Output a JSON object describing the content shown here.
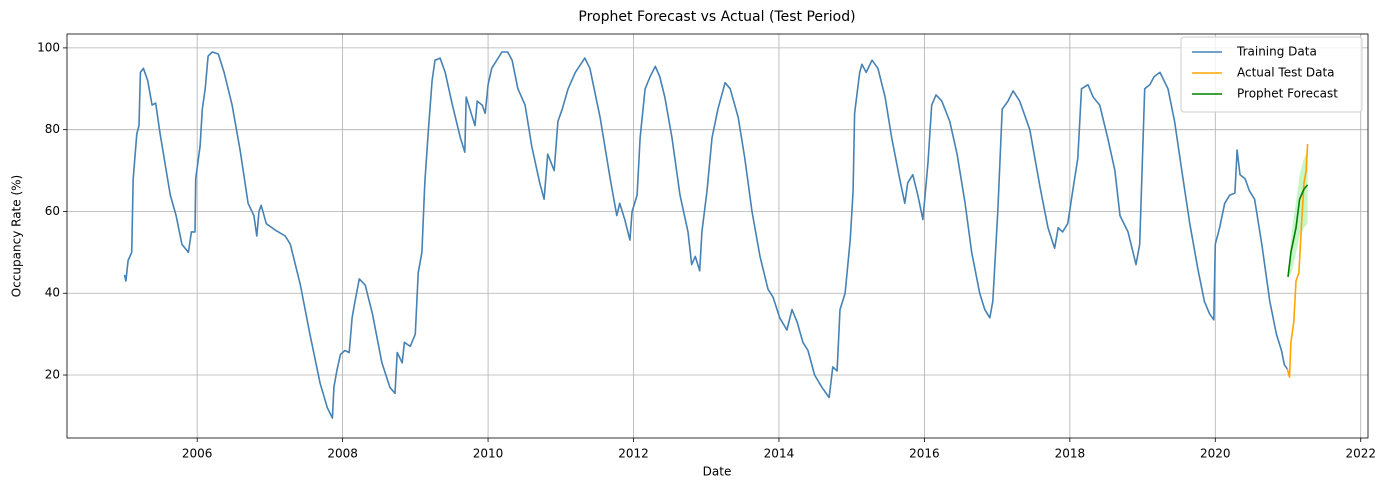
{
  "chart_data": {
    "type": "line",
    "title": "Prophet Forecast vs Actual (Test Period)",
    "x_label": "Date",
    "y_label": "Occupancy Rate (%)",
    "xlim": [
      2004.21,
      2022.1
    ],
    "ylim": [
      4.6,
      103.4
    ],
    "xticks": [
      2006,
      2008,
      2010,
      2012,
      2014,
      2016,
      2018,
      2020,
      2022
    ],
    "yticks": [
      20,
      40,
      60,
      80,
      100
    ],
    "grid": true,
    "legend": "upper right",
    "series": [
      {
        "name": "Training Data",
        "color": "#4682b4",
        "x": [
          2005.0,
          2005.02,
          2005.05,
          2005.1,
          2005.12,
          2005.17,
          2005.2,
          2005.22,
          2005.26,
          2005.32,
          2005.38,
          2005.43,
          2005.49,
          2005.63,
          2005.71,
          2005.79,
          2005.88,
          2005.92,
          2005.97,
          2005.98,
          2006.04,
          2006.07,
          2006.11,
          2006.15,
          2006.21,
          2006.29,
          2006.37,
          2006.48,
          2006.59,
          2006.7,
          2006.78,
          2006.82,
          2006.85,
          2006.88,
          2006.95,
          2007.07,
          2007.21,
          2007.28,
          2007.42,
          2007.55,
          2007.69,
          2007.79,
          2007.86,
          2007.88,
          2007.92,
          2007.97,
          2008.03,
          2008.09,
          2008.13,
          2008.17,
          2008.23,
          2008.31,
          2008.41,
          2008.54,
          2008.65,
          2008.72,
          2008.75,
          2008.82,
          2008.85,
          2008.93,
          2009.0,
          2009.04,
          2009.09,
          2009.13,
          2009.18,
          2009.23,
          2009.27,
          2009.34,
          2009.41,
          2009.51,
          2009.62,
          2009.68,
          2009.7,
          2009.75,
          2009.82,
          2009.85,
          2009.92,
          2009.96,
          2010.0,
          2010.05,
          2010.12,
          2010.19,
          2010.27,
          2010.33,
          2010.41,
          2010.51,
          2010.6,
          2010.71,
          2010.77,
          2010.82,
          2010.91,
          2010.96,
          2011.02,
          2011.1,
          2011.2,
          2011.33,
          2011.4,
          2011.54,
          2011.68,
          2011.77,
          2011.81,
          2011.88,
          2011.95,
          2011.98,
          2012.05,
          2012.09,
          2012.16,
          2012.23,
          2012.3,
          2012.36,
          2012.43,
          2012.53,
          2012.64,
          2012.75,
          2012.8,
          2012.85,
          2012.91,
          2012.94,
          2013.01,
          2013.08,
          2013.16,
          2013.26,
          2013.33,
          2013.44,
          2013.53,
          2013.63,
          2013.74,
          2013.85,
          2013.92,
          2014.01,
          2014.11,
          2014.18,
          2014.25,
          2014.33,
          2014.4,
          2014.49,
          2014.59,
          2014.69,
          2014.74,
          2014.8,
          2014.84,
          2014.91,
          2014.98,
          2015.02,
          2015.04,
          2015.11,
          2015.14,
          2015.2,
          2015.28,
          2015.36,
          2015.46,
          2015.55,
          2015.66,
          2015.73,
          2015.77,
          2015.84,
          2015.91,
          2015.98,
          2016.05,
          2016.1,
          2016.16,
          2016.24,
          2016.35,
          2016.45,
          2016.56,
          2016.65,
          2016.76,
          2016.83,
          2016.9,
          2016.94,
          2017.01,
          2017.07,
          2017.15,
          2017.22,
          2017.31,
          2017.45,
          2017.59,
          2017.7,
          2017.79,
          2017.84,
          2017.9,
          2017.97,
          2018.04,
          2018.11,
          2018.16,
          2018.25,
          2018.32,
          2018.41,
          2018.52,
          2018.62,
          2018.69,
          2018.8,
          2018.87,
          2018.91,
          2018.96,
          2019.03,
          2019.1,
          2019.16,
          2019.24,
          2019.35,
          2019.44,
          2019.54,
          2019.65,
          2019.76,
          2019.85,
          2019.92,
          2019.98,
          2020.0,
          2020.06,
          2020.13,
          2020.2,
          2020.27,
          2020.3,
          2020.34,
          2020.41,
          2020.47,
          2020.54,
          2020.64,
          2020.75,
          2020.84,
          2020.91,
          2020.95,
          2020.99
        ],
        "values": [
          44.5,
          43,
          48,
          50,
          68,
          79,
          81,
          94,
          95,
          92,
          86,
          86.5,
          79,
          64,
          59,
          52,
          50,
          55,
          55,
          68,
          76,
          85,
          90,
          98,
          99,
          98.5,
          94,
          86,
          75,
          62,
          59,
          54,
          60,
          61.5,
          57,
          55.5,
          54,
          52,
          42,
          30,
          18,
          12,
          9.5,
          17,
          21,
          25,
          26,
          25.5,
          34,
          38,
          43.5,
          42,
          35,
          23,
          17,
          15.5,
          25.5,
          23,
          28,
          27,
          30,
          45,
          50,
          67,
          80,
          92,
          97,
          97.5,
          94,
          86,
          78,
          74.5,
          88,
          85,
          81,
          87,
          86,
          84,
          91,
          95,
          97,
          99,
          99,
          97,
          90,
          86,
          76,
          67,
          63,
          74,
          70,
          82,
          85,
          90,
          94,
          97.5,
          95,
          83,
          68,
          59,
          62,
          58,
          53,
          60,
          64,
          78,
          90,
          93,
          95.5,
          93,
          88,
          78,
          64,
          55,
          47,
          49,
          45.5,
          55,
          65,
          78,
          85,
          91.5,
          90,
          83,
          73,
          60,
          49,
          41,
          39,
          34,
          31,
          36,
          33,
          28,
          26,
          20,
          17,
          14.5,
          22,
          21,
          36,
          40,
          53,
          65,
          84,
          94,
          96,
          94,
          97,
          95,
          88,
          78,
          68,
          62,
          67,
          69,
          64,
          58,
          72,
          86,
          88.5,
          87,
          82,
          74,
          62,
          50,
          40,
          36,
          34,
          38,
          60,
          85,
          87,
          89.5,
          87,
          80,
          66,
          56,
          51,
          56,
          55,
          57,
          65,
          73,
          90,
          91,
          88,
          86,
          78,
          70,
          59,
          55,
          50,
          47,
          52,
          90,
          91,
          93,
          94,
          90,
          82,
          70,
          57,
          46,
          38,
          35,
          33.5,
          52,
          56,
          62,
          64,
          64.5,
          75,
          69,
          68,
          65,
          63,
          52,
          38,
          30,
          26,
          22.5,
          21.5
        ]
      },
      {
        "name": "Actual Test Data",
        "color": "#ffa500",
        "x": [
          2020.99,
          2021.02,
          2021.04,
          2021.08,
          2021.11,
          2021.15,
          2021.19,
          2021.22,
          2021.25,
          2021.27
        ],
        "values": [
          21.5,
          19.5,
          28,
          33,
          43,
          45,
          58,
          67,
          70,
          76.5
        ]
      },
      {
        "name": "Prophet Forecast",
        "color": "#008000",
        "x": [
          2021.0,
          2021.04,
          2021.11,
          2021.16,
          2021.22,
          2021.27
        ],
        "values": [
          44,
          50,
          56,
          63,
          65.5,
          66.5
        ]
      }
    ],
    "forecast_interval": {
      "color": "#90ee90",
      "x": [
        2021.0,
        2021.05,
        2021.1,
        2021.16,
        2021.22,
        2021.27
      ],
      "lower": [
        44,
        45,
        49,
        54,
        56,
        57
      ],
      "upper": [
        44,
        55,
        61,
        69,
        73,
        75
      ]
    }
  }
}
